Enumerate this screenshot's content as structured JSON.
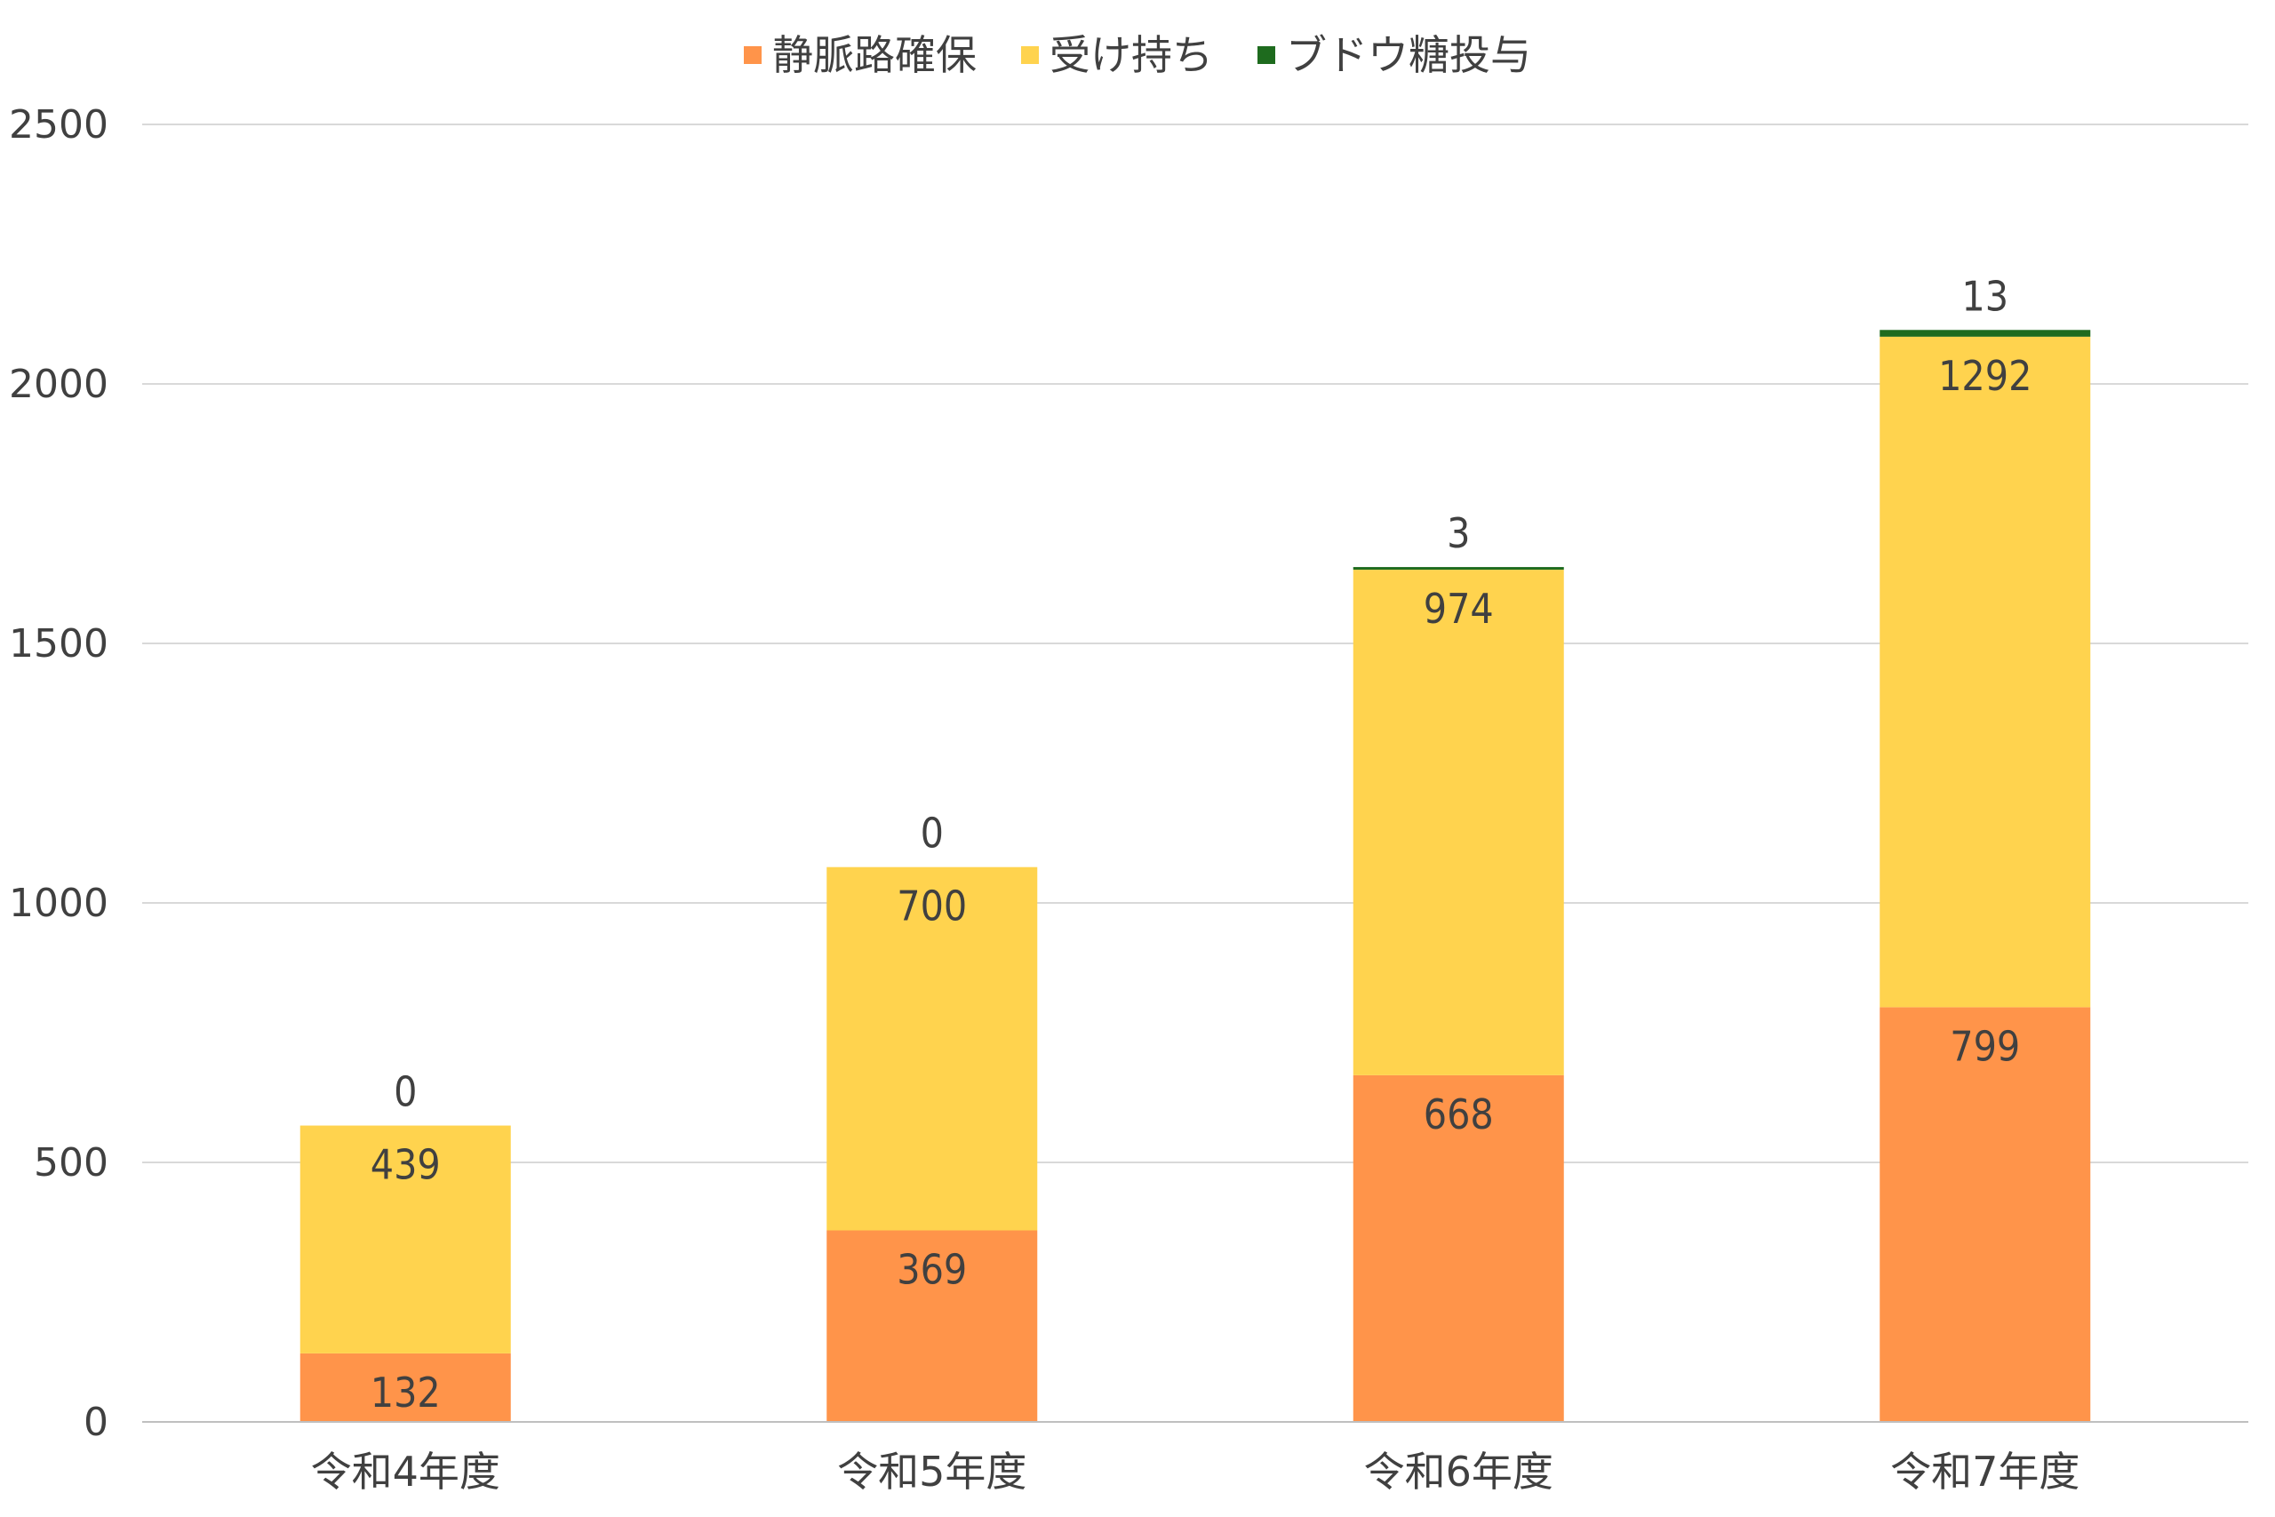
{
  "chart_data": {
    "type": "bar",
    "stacked": true,
    "categories": [
      "令和4年度",
      "令和5年度",
      "令和6年度",
      "令和7年度"
    ],
    "series": [
      {
        "name": "静脈路確保",
        "values": [
          132,
          369,
          668,
          799
        ],
        "color": "#FF944A"
      },
      {
        "name": "受け持ち",
        "values": [
          439,
          700,
          974,
          1292
        ],
        "color": "#FFD34E"
      },
      {
        "name": "ブドウ糖投与",
        "values": [
          0,
          0,
          3,
          13
        ],
        "color": "#1E6B1E"
      }
    ],
    "yticks": [
      0,
      500,
      1000,
      1500,
      2000,
      2500
    ],
    "ylim": [
      0,
      2500
    ],
    "grid": true,
    "legend_position": "top",
    "title": "",
    "xlabel": "",
    "ylabel": ""
  }
}
